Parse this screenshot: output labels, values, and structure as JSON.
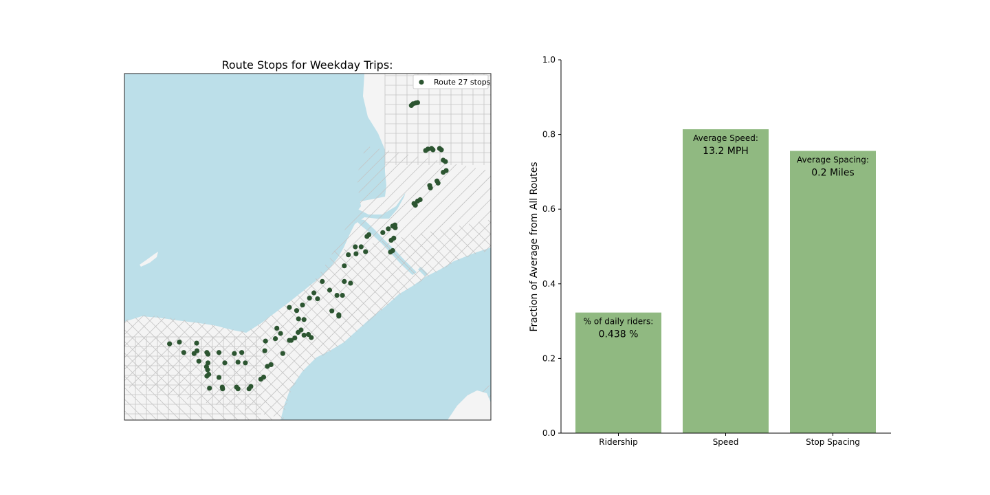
{
  "map_panel": {
    "title": "Route Stops for Weekday Trips:",
    "legend_label": "Route 27 stops",
    "colors": {
      "water": "#bcdfe9",
      "land": "#f4f4f4",
      "streets": "#c4c4c4",
      "stop": "#2c5531"
    },
    "stops": [
      [
        0.783,
        0.092
      ],
      [
        0.788,
        0.087
      ],
      [
        0.795,
        0.085
      ],
      [
        0.8,
        0.084
      ],
      [
        0.822,
        0.222
      ],
      [
        0.828,
        0.218
      ],
      [
        0.838,
        0.216
      ],
      [
        0.842,
        0.22
      ],
      [
        0.86,
        0.216
      ],
      [
        0.865,
        0.22
      ],
      [
        0.87,
        0.25
      ],
      [
        0.876,
        0.254
      ],
      [
        0.87,
        0.285
      ],
      [
        0.878,
        0.28
      ],
      [
        0.833,
        0.323
      ],
      [
        0.835,
        0.33
      ],
      [
        0.853,
        0.31
      ],
      [
        0.856,
        0.316
      ],
      [
        0.79,
        0.375
      ],
      [
        0.794,
        0.38
      ],
      [
        0.8,
        0.368
      ],
      [
        0.807,
        0.364
      ],
      [
        0.732,
        0.44
      ],
      [
        0.739,
        0.445
      ],
      [
        0.72,
        0.448
      ],
      [
        0.738,
        0.437
      ],
      [
        0.705,
        0.459
      ],
      [
        0.662,
        0.47
      ],
      [
        0.667,
        0.465
      ],
      [
        0.63,
        0.5
      ],
      [
        0.646,
        0.5
      ],
      [
        0.632,
        0.52
      ],
      [
        0.611,
        0.523
      ],
      [
        0.735,
        0.475
      ],
      [
        0.728,
        0.481
      ],
      [
        0.726,
        0.515
      ],
      [
        0.732,
        0.511
      ],
      [
        0.658,
        0.514
      ],
      [
        0.6,
        0.555
      ],
      [
        0.6,
        0.6
      ],
      [
        0.617,
        0.605
      ],
      [
        0.595,
        0.64
      ],
      [
        0.58,
        0.64
      ],
      [
        0.585,
        0.696
      ],
      [
        0.585,
        0.7
      ],
      [
        0.56,
        0.625
      ],
      [
        0.54,
        0.6
      ],
      [
        0.566,
        0.685
      ],
      [
        0.517,
        0.633
      ],
      [
        0.505,
        0.648
      ],
      [
        0.486,
        0.668
      ],
      [
        0.527,
        0.65
      ],
      [
        0.45,
        0.675
      ],
      [
        0.47,
        0.684
      ],
      [
        0.475,
        0.708
      ],
      [
        0.49,
        0.71
      ],
      [
        0.502,
        0.753
      ],
      [
        0.51,
        0.762
      ],
      [
        0.482,
        0.74
      ],
      [
        0.49,
        0.755
      ],
      [
        0.474,
        0.747
      ],
      [
        0.465,
        0.763
      ],
      [
        0.455,
        0.77
      ],
      [
        0.416,
        0.735
      ],
      [
        0.426,
        0.75
      ],
      [
        0.412,
        0.765
      ],
      [
        0.45,
        0.77
      ],
      [
        0.432,
        0.808
      ],
      [
        0.39,
        0.845
      ],
      [
        0.4,
        0.84
      ],
      [
        0.38,
        0.876
      ],
      [
        0.372,
        0.882
      ],
      [
        0.385,
        0.772
      ],
      [
        0.383,
        0.8
      ],
      [
        0.123,
        0.78
      ],
      [
        0.15,
        0.775
      ],
      [
        0.197,
        0.778
      ],
      [
        0.162,
        0.805
      ],
      [
        0.19,
        0.808
      ],
      [
        0.198,
        0.8
      ],
      [
        0.225,
        0.805
      ],
      [
        0.228,
        0.81
      ],
      [
        0.258,
        0.805
      ],
      [
        0.3,
        0.808
      ],
      [
        0.32,
        0.805
      ],
      [
        0.203,
        0.83
      ],
      [
        0.228,
        0.835
      ],
      [
        0.274,
        0.835
      ],
      [
        0.31,
        0.833
      ],
      [
        0.33,
        0.835
      ],
      [
        0.224,
        0.846
      ],
      [
        0.227,
        0.855
      ],
      [
        0.225,
        0.873
      ],
      [
        0.23,
        0.868
      ],
      [
        0.258,
        0.877
      ],
      [
        0.232,
        0.908
      ],
      [
        0.267,
        0.905
      ],
      [
        0.268,
        0.91
      ],
      [
        0.306,
        0.905
      ],
      [
        0.31,
        0.91
      ],
      [
        0.34,
        0.91
      ],
      [
        0.345,
        0.903
      ]
    ]
  },
  "chart_data": {
    "type": "bar",
    "categories": [
      "Ridership",
      "Speed",
      "Stop Spacing"
    ],
    "values": [
      0.323,
      0.814,
      0.756
    ],
    "bar_notes": [
      "% of daily riders:",
      "Average Speed:",
      "Average Spacing:"
    ],
    "bar_values": [
      "0.438 %",
      "13.2 MPH",
      "0.2 Miles"
    ],
    "ylabel": "Fraction of Average from All Routes",
    "xlabel": "",
    "ylim": [
      0,
      1
    ],
    "yticks": [
      "0.0",
      "0.2",
      "0.4",
      "0.6",
      "0.8",
      "1.0"
    ],
    "ytick_values": [
      0,
      0.2,
      0.4,
      0.6,
      0.8,
      1.0
    ],
    "bar_color": "#90b981",
    "grid": false
  }
}
